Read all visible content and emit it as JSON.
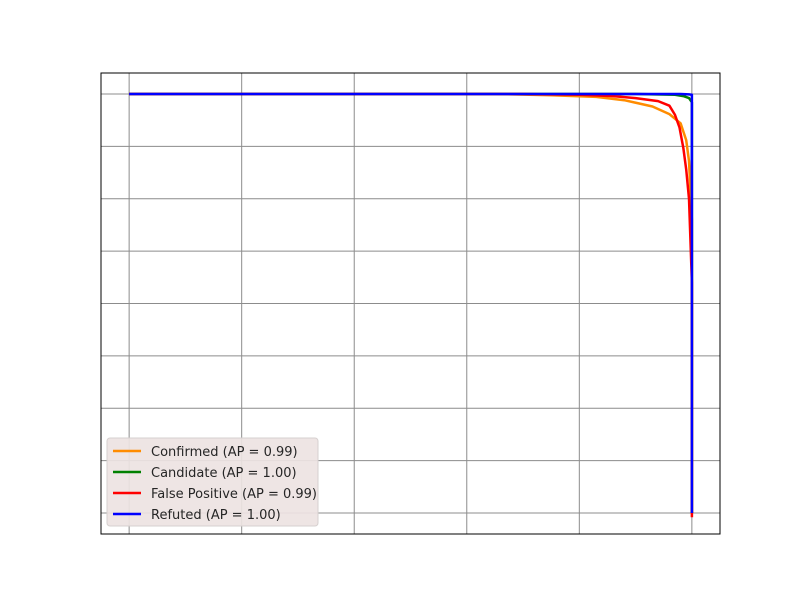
{
  "chart_data": {
    "type": "line",
    "title": "",
    "xlabel": "",
    "ylabel": "",
    "xlim": [
      -0.05,
      1.05
    ],
    "ylim": [
      -0.05,
      1.05
    ],
    "x_grid_ticks": [
      0.0,
      0.2,
      0.4,
      0.6,
      0.8,
      1.0
    ],
    "y_grid_ticks": [
      0.0,
      0.125,
      0.25,
      0.375,
      0.5,
      0.625,
      0.75,
      0.875,
      1.0
    ],
    "grid": true,
    "legend_position": "lower-left",
    "series": [
      {
        "name": "Confirmed (AP = 0.99)",
        "color": "#ff8c00",
        "points": [
          [
            0.0,
            1.0
          ],
          [
            0.65,
            1.0
          ],
          [
            0.75,
            0.997
          ],
          [
            0.83,
            0.993
          ],
          [
            0.88,
            0.985
          ],
          [
            0.93,
            0.97
          ],
          [
            0.96,
            0.952
          ],
          [
            0.98,
            0.93
          ],
          [
            0.99,
            0.89
          ],
          [
            0.995,
            0.84
          ],
          [
            1.0,
            0.7
          ],
          [
            1.0,
            0.0
          ]
        ]
      },
      {
        "name": "Candidate (AP = 1.00)",
        "color": "#008000",
        "points": [
          [
            0.0,
            1.0
          ],
          [
            0.9,
            1.0
          ],
          [
            0.97,
            0.998
          ],
          [
            0.985,
            0.995
          ],
          [
            0.995,
            0.99
          ],
          [
            1.0,
            0.98
          ],
          [
            1.0,
            0.0
          ]
        ]
      },
      {
        "name": "False Positive (AP = 0.99)",
        "color": "#ff0000",
        "points": [
          [
            0.0,
            1.0
          ],
          [
            0.7,
            1.0
          ],
          [
            0.8,
            0.998
          ],
          [
            0.86,
            0.995
          ],
          [
            0.9,
            0.99
          ],
          [
            0.94,
            0.983
          ],
          [
            0.96,
            0.972
          ],
          [
            0.97,
            0.95
          ],
          [
            0.978,
            0.92
          ],
          [
            0.985,
            0.87
          ],
          [
            0.99,
            0.82
          ],
          [
            0.995,
            0.75
          ],
          [
            1.0,
            0.55
          ],
          [
            1.0,
            -0.01
          ]
        ]
      },
      {
        "name": "Refuted (AP = 1.00)",
        "color": "#0000ff",
        "points": [
          [
            0.0,
            1.0
          ],
          [
            0.98,
            1.0
          ],
          [
            0.995,
            0.999
          ],
          [
            1.0,
            0.998
          ],
          [
            1.0,
            0.0
          ]
        ]
      }
    ]
  }
}
